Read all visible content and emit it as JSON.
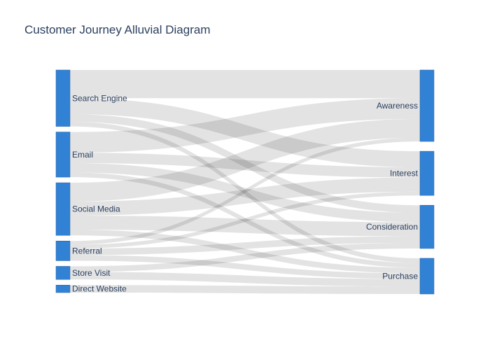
{
  "title": "Customer Journey Alluvial Diagram",
  "colors": {
    "node_fill": "#3182d5",
    "node_stroke": "#2a5f9e",
    "link": "#c8c8c8",
    "text": "#2a3f5f"
  },
  "chart_data": {
    "type": "sankey",
    "sources": [
      "Search Engine",
      "Email",
      "Social Media",
      "Referral",
      "Store Visit",
      "Direct Website"
    ],
    "stages": [
      "Awareness",
      "Interest",
      "Consideration",
      "Purchase"
    ],
    "flows": [
      {
        "source": "Search Engine",
        "target": "Awareness",
        "value": 30
      },
      {
        "source": "Search Engine",
        "target": "Interest",
        "value": 17
      },
      {
        "source": "Search Engine",
        "target": "Consideration",
        "value": 8
      },
      {
        "source": "Search Engine",
        "target": "Purchase",
        "value": 5
      },
      {
        "source": "Email",
        "target": "Awareness",
        "value": 22
      },
      {
        "source": "Email",
        "target": "Interest",
        "value": 11
      },
      {
        "source": "Email",
        "target": "Consideration",
        "value": 10
      },
      {
        "source": "Email",
        "target": "Purchase",
        "value": 5
      },
      {
        "source": "Social Media",
        "target": "Awareness",
        "value": 20
      },
      {
        "source": "Social Media",
        "target": "Interest",
        "value": 15
      },
      {
        "source": "Social Media",
        "target": "Consideration",
        "value": 15
      },
      {
        "source": "Social Media",
        "target": "Purchase",
        "value": 6
      },
      {
        "source": "Referral",
        "target": "Awareness",
        "value": 4
      },
      {
        "source": "Referral",
        "target": "Interest",
        "value": 4
      },
      {
        "source": "Referral",
        "target": "Consideration",
        "value": 7
      },
      {
        "source": "Referral",
        "target": "Purchase",
        "value": 6
      },
      {
        "source": "Store Visit",
        "target": "Consideration",
        "value": 6
      },
      {
        "source": "Store Visit",
        "target": "Purchase",
        "value": 8
      },
      {
        "source": "Direct Website",
        "target": "Purchase",
        "value": 8
      }
    ]
  }
}
